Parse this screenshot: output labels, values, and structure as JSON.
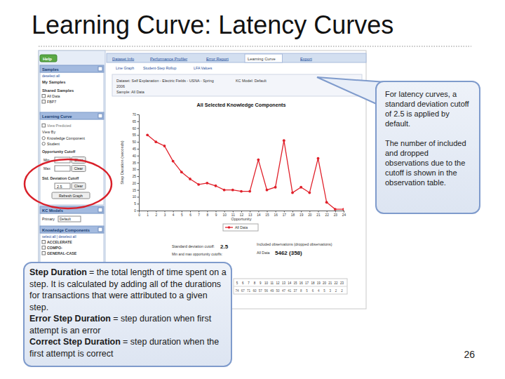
{
  "slide": {
    "title": "Learning Curve: Latency Curves",
    "page_number": 26,
    "callout_right": [
      "For latency curves, a standard deviation cutoff of 2.5 is applied by default.",
      "The number of included and dropped observations due to the cutoff is shown in the observation table."
    ],
    "callout_left": [
      {
        "term": "Step Duration",
        "text": "= the total length of time spent on a step. It is calculated by adding all of the durations for transactions that were attributed to a given step."
      },
      {
        "term": "Error Step Duration",
        "text": "= step duration when first attempt is an error"
      },
      {
        "term": "Correct Step Duration",
        "text": "= step duration when the first attempt is correct"
      }
    ]
  },
  "screenshot": {
    "help": "Help",
    "tabs": [
      "Dataset Info",
      "Performance Profiler",
      "Error Report",
      "Learning Curve",
      "Export"
    ],
    "subtabs": [
      "Line Graph",
      "Student-Step Rollup",
      "LFA Values"
    ],
    "dataset_info": [
      "Dataset: Self Explanation - Electric Fields - USNA - Spring",
      "2006",
      "Sample: All Data"
    ],
    "kc_model": "KC Model: Default",
    "sidebar": {
      "samples": {
        "header": "Samples",
        "items": [
          "deselect all",
          "My Samples",
          "Shared Samples",
          "All Data",
          "FBP7"
        ]
      },
      "learning_curve": {
        "header": "Learning Curve",
        "view_predicted": "View Predicted",
        "view_by": "View By",
        "options": [
          "Knowledge Component",
          "Student"
        ],
        "opportunity_cutoff": "Opportunity Cutoff",
        "min": "Min",
        "max": "Max",
        "clear": "Clear",
        "std_cutoff": "Std. Deviation Cutoff",
        "std_value": 2.5,
        "refresh": "Refresh Graph"
      },
      "kc_models": {
        "header": "KC Models",
        "primary": "Primary",
        "default": "Default"
      },
      "knowledge_components": {
        "header": "Knowledge Components",
        "select": "select all | deselect all",
        "items": [
          "ACCELERATE",
          "COMPO-",
          "GENERAL-CASE"
        ]
      }
    },
    "std_cutoff_label": "Standard deviation cutoff:",
    "std_cutoff_value": 2.5,
    "opportunity_cutoffs_label": "Min and max opportunity cutoffs:",
    "observations_label": "Included observations (dropped observations)",
    "observations_name": "All Data",
    "observations_value": "5462 (358)",
    "observation_table": {
      "opportunities": [
        5,
        6,
        7,
        8,
        9,
        10,
        11,
        12,
        13,
        14,
        15,
        16,
        17,
        18,
        19,
        20,
        21,
        22,
        23
      ],
      "counts": [
        74,
        67,
        71,
        60,
        57,
        56,
        49,
        50,
        47,
        41,
        37,
        8,
        5,
        6,
        4,
        5,
        3,
        2,
        2
      ]
    }
  },
  "chart_data": {
    "type": "line",
    "title": "All Selected Knowledge Components",
    "x_label": "Opportunity",
    "y_label": "Step Duration (seconds)",
    "x": [
      1,
      2,
      3,
      4,
      5,
      6,
      7,
      8,
      9,
      10,
      11,
      12,
      13,
      14,
      15,
      16,
      17,
      18,
      19,
      20,
      21,
      22,
      23,
      24
    ],
    "series": [
      {
        "name": "All Data",
        "color": "#e0202a",
        "marker": "circle",
        "values": [
          55,
          50,
          47,
          36,
          28,
          23,
          19,
          20,
          18,
          15,
          15,
          14,
          14,
          37,
          15,
          17,
          51,
          13,
          17,
          13,
          38,
          6,
          1,
          1
        ]
      }
    ],
    "xlim": [
      0,
      24
    ],
    "xticks": [
      0,
      1,
      2,
      3,
      4,
      5,
      6,
      7,
      8,
      9,
      10,
      11,
      12,
      13,
      14,
      15,
      16,
      17,
      18,
      19,
      20,
      21,
      22,
      23,
      24
    ],
    "ylim": [
      0,
      70
    ],
    "yticks": [
      0,
      5,
      10,
      15,
      20,
      25,
      30,
      35,
      40,
      45,
      50,
      55,
      60,
      65,
      70
    ],
    "legend": "bottom",
    "grid": false
  }
}
